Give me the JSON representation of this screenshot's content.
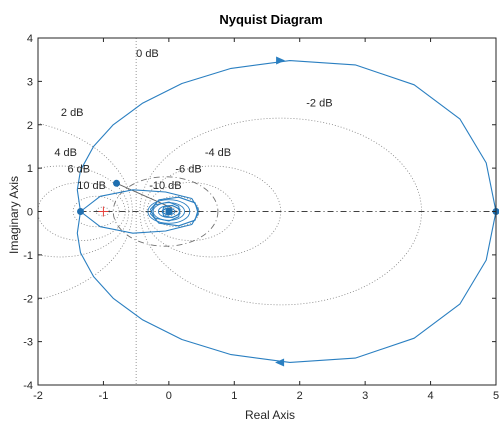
{
  "chart_data": {
    "type": "line",
    "title": "Nyquist Diagram",
    "xlabel": "Real Axis",
    "ylabel": "Imaginary Axis",
    "xlim": [
      -2,
      5
    ],
    "ylim": [
      -4,
      4
    ],
    "xticks": [
      "-2",
      "-1",
      "0",
      "1",
      "2",
      "3",
      "4",
      "5"
    ],
    "yticks": [
      "-4",
      "-3",
      "-2",
      "-1",
      "0",
      "1",
      "2",
      "3",
      "4"
    ],
    "grid": "dB M-circles (dotted)",
    "series": [
      {
        "points": [
          [
            5.0,
            0.0
          ],
          [
            4.85,
            1.12
          ],
          [
            4.45,
            2.13
          ],
          [
            3.75,
            2.92
          ],
          [
            2.85,
            3.38
          ],
          [
            1.85,
            3.48
          ],
          [
            0.95,
            3.3
          ],
          [
            0.2,
            2.95
          ],
          [
            -0.4,
            2.5
          ],
          [
            -0.85,
            2.0
          ],
          [
            -1.15,
            1.5
          ],
          [
            -1.35,
            0.95
          ],
          [
            -1.4,
            0.5
          ],
          [
            -1.35,
            0.0
          ],
          [
            -1.05,
            -0.35
          ],
          [
            -0.55,
            -0.5
          ],
          [
            -0.05,
            -0.45
          ],
          [
            0.35,
            -0.3
          ],
          [
            0.45,
            -0.05
          ],
          [
            0.4,
            0.2
          ],
          [
            0.15,
            0.33
          ],
          [
            -0.15,
            0.27
          ],
          [
            -0.28,
            0.05
          ],
          [
            -0.22,
            -0.15
          ],
          [
            0.0,
            -0.22
          ],
          [
            0.15,
            -0.12
          ],
          [
            0.17,
            0.05
          ],
          [
            0.05,
            0.14
          ],
          [
            -0.08,
            0.1
          ],
          [
            -0.1,
            -0.02
          ],
          [
            -0.02,
            -0.08
          ],
          [
            0.05,
            -0.04
          ],
          [
            0.04,
            0.03
          ],
          [
            0.0,
            0.04
          ],
          [
            -0.02,
            0.0
          ],
          [
            0.0,
            0.0
          ]
        ],
        "mirror": true,
        "color": "#2a7fc1"
      }
    ],
    "markers": [
      {
        "x": 5.0,
        "y": 0.0
      },
      {
        "x": -1.35,
        "y": 0.0
      },
      {
        "x": -0.8,
        "y": 0.65
      },
      {
        "x": 0.0,
        "y": 0.0
      }
    ],
    "arrows": [
      {
        "x": 1.7,
        "y": 3.48,
        "direction": "right"
      },
      {
        "x": 1.7,
        "y": -3.48,
        "direction": "left"
      }
    ],
    "db_labels": [
      {
        "text": "0 dB",
        "x": -0.5,
        "y": 3.56
      },
      {
        "text": "2 dB",
        "x": -1.65,
        "y": 2.2
      },
      {
        "text": "-2 dB",
        "x": 2.1,
        "y": 2.42
      },
      {
        "text": "4 dB",
        "x": -1.75,
        "y": 1.28
      },
      {
        "text": "-4 dB",
        "x": 0.55,
        "y": 1.28
      },
      {
        "text": "6 dB",
        "x": -1.55,
        "y": 0.9
      },
      {
        "text": "-6 dB",
        "x": 0.1,
        "y": 0.9
      },
      {
        "text": "10 dB",
        "x": -1.4,
        "y": 0.52
      },
      {
        "text": "-10 dB",
        "x": -0.3,
        "y": 0.52
      }
    ],
    "critical_point": {
      "x": -1,
      "y": 0
    },
    "colors": {
      "curve": "#2a7fc1",
      "grid": "#808080",
      "dashdot": "#404040",
      "critical": "#e8423c"
    }
  }
}
